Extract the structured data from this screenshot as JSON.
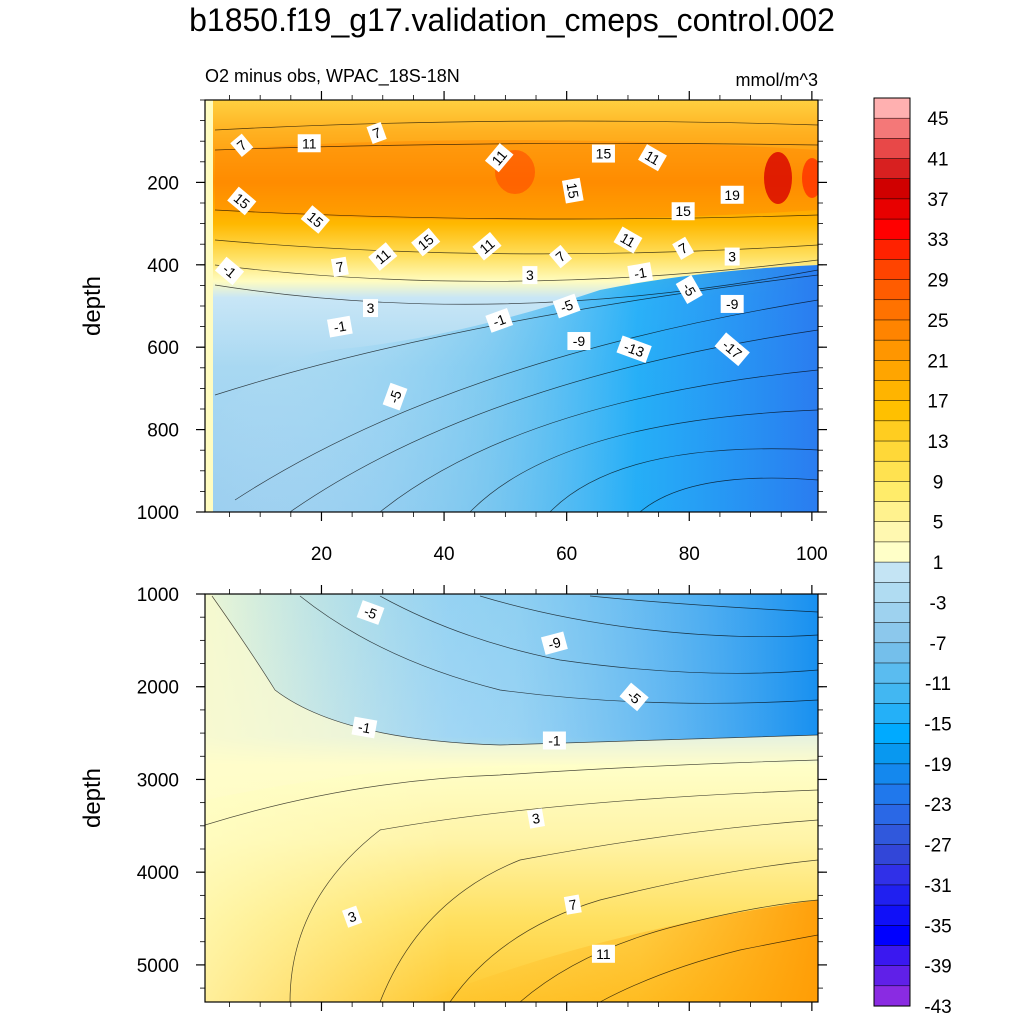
{
  "chart_data": {
    "type": "heatmap",
    "title": "b1850.f19_g17.validation_cmeps_control.002",
    "subtitle_left": "O2 minus obs, WPAC_18S-18N",
    "subtitle_right": "mmol/m^3",
    "ylabel": "depth",
    "x_ticks": [
      "20",
      "40",
      "60",
      "80",
      "100"
    ],
    "x_tick_values": [
      20,
      40,
      60,
      80,
      100
    ],
    "xlim": [
      1,
      101
    ],
    "panels": [
      {
        "name": "upper",
        "ylim": [
          0,
          1000
        ],
        "y_ticks": [
          "200",
          "400",
          "600",
          "800",
          "1000"
        ],
        "y_tick_values": [
          200,
          400,
          600,
          800,
          1000
        ],
        "contour_labels": [
          {
            "text": "7",
            "x": 7,
            "y": 110,
            "angle": -40
          },
          {
            "text": "11",
            "x": 18,
            "y": 105,
            "angle": 0
          },
          {
            "text": "7",
            "x": 29,
            "y": 80,
            "angle": -20
          },
          {
            "text": "11",
            "x": 49,
            "y": 140,
            "angle": -50
          },
          {
            "text": "15",
            "x": 66,
            "y": 130,
            "angle": 0
          },
          {
            "text": "11",
            "x": 74,
            "y": 140,
            "angle": 30
          },
          {
            "text": "15",
            "x": 7,
            "y": 245,
            "angle": 40
          },
          {
            "text": "15",
            "x": 19,
            "y": 290,
            "angle": 40
          },
          {
            "text": "15",
            "x": 37,
            "y": 345,
            "angle": -40
          },
          {
            "text": "11",
            "x": 47,
            "y": 355,
            "angle": -40
          },
          {
            "text": "15",
            "x": 61,
            "y": 220,
            "angle": 80
          },
          {
            "text": "15",
            "x": 79,
            "y": 270,
            "angle": 0
          },
          {
            "text": "19",
            "x": 87,
            "y": 230,
            "angle": 0
          },
          {
            "text": "11",
            "x": 70,
            "y": 340,
            "angle": 30
          },
          {
            "text": "7",
            "x": 79,
            "y": 360,
            "angle": -30
          },
          {
            "text": "3",
            "x": 87,
            "y": 380,
            "angle": 0
          },
          {
            "text": "-1",
            "x": 5,
            "y": 415,
            "angle": 40
          },
          {
            "text": "7",
            "x": 23,
            "y": 405,
            "angle": -10
          },
          {
            "text": "11",
            "x": 30,
            "y": 380,
            "angle": -40
          },
          {
            "text": "3",
            "x": 54,
            "y": 425,
            "angle": 0
          },
          {
            "text": "7",
            "x": 59,
            "y": 380,
            "angle": -40
          },
          {
            "text": "-1",
            "x": 72,
            "y": 420,
            "angle": -10
          },
          {
            "text": "-5",
            "x": 80,
            "y": 460,
            "angle": 60
          },
          {
            "text": "-9",
            "x": 87,
            "y": 495,
            "angle": 0
          },
          {
            "text": "3",
            "x": 28,
            "y": 505,
            "angle": 0
          },
          {
            "text": "-1",
            "x": 23,
            "y": 550,
            "angle": -10
          },
          {
            "text": "-1",
            "x": 49,
            "y": 535,
            "angle": -20
          },
          {
            "text": "-5",
            "x": 60,
            "y": 500,
            "angle": -20
          },
          {
            "text": "-9",
            "x": 62,
            "y": 585,
            "angle": 0
          },
          {
            "text": "-13",
            "x": 71,
            "y": 605,
            "angle": 20
          },
          {
            "text": "-17",
            "x": 87,
            "y": 605,
            "angle": 40
          },
          {
            "text": "-5",
            "x": 32,
            "y": 720,
            "angle": -70
          }
        ]
      },
      {
        "name": "lower",
        "ylim": [
          1000,
          5400
        ],
        "y_ticks": [
          "1000",
          "2000",
          "3000",
          "4000",
          "5000"
        ],
        "y_tick_values": [
          1000,
          2000,
          3000,
          4000,
          5000
        ],
        "contour_labels": [
          {
            "text": "-5",
            "x": 28,
            "y": 1200,
            "angle": 20
          },
          {
            "text": "-9",
            "x": 58,
            "y": 1530,
            "angle": -15
          },
          {
            "text": "-5",
            "x": 71,
            "y": 2110,
            "angle": 40
          },
          {
            "text": "-1",
            "x": 27,
            "y": 2440,
            "angle": 10
          },
          {
            "text": "-1",
            "x": 58,
            "y": 2580,
            "angle": 0
          },
          {
            "text": "3",
            "x": 55,
            "y": 3420,
            "angle": -10
          },
          {
            "text": "3",
            "x": 25,
            "y": 4480,
            "angle": -20
          },
          {
            "text": "7",
            "x": 61,
            "y": 4350,
            "angle": -10
          },
          {
            "text": "11",
            "x": 66,
            "y": 4880,
            "angle": 0
          }
        ]
      }
    ],
    "colorbar": {
      "labels": [
        "45",
        "41",
        "37",
        "33",
        "29",
        "25",
        "21",
        "17",
        "13",
        "9",
        "5",
        "1",
        "-3",
        "-7",
        "-11",
        "-15",
        "-19",
        "-23",
        "-27",
        "-31",
        "-35",
        "-39",
        "-43"
      ],
      "colors": [
        "#ffb0b0",
        "#f47878",
        "#e84848",
        "#d82020",
        "#d00000",
        "#e80000",
        "#ff0000",
        "#ff2200",
        "#ff4400",
        "#ff5c00",
        "#ff7200",
        "#ff8400",
        "#ff9600",
        "#ffa500",
        "#ffb400",
        "#ffc000",
        "#ffcd20",
        "#ffd838",
        "#ffe250",
        "#ffec6a",
        "#fff28e",
        "#fff8b0",
        "#ffffc8",
        "#c4e4f4",
        "#b0dcf2",
        "#9ed2ef",
        "#8cc8ec",
        "#74bfeb",
        "#5abcf0",
        "#42b7f2",
        "#24b0f8",
        "#00aaff",
        "#0898f0",
        "#1488ee",
        "#2078ec",
        "#2a68e6",
        "#3058dc",
        "#3246d8",
        "#3030e8",
        "#2020f0",
        "#1010f8",
        "#0000ff",
        "#3a18f0",
        "#6020e8",
        "#8a2be2"
      ]
    }
  }
}
